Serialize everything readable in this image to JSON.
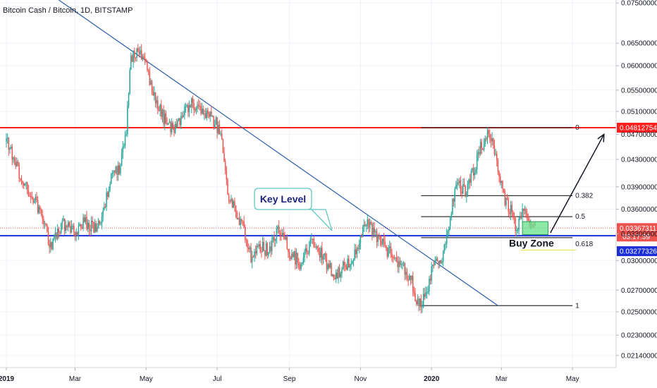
{
  "header": {
    "title": "Bitcoin Cash / Bitcoin, 1D, BITSTAMP"
  },
  "colors": {
    "up": "#26a69a",
    "down": "#ef5350",
    "resistance": "#ff1e1e",
    "support": "#1b2fd8",
    "trendline": "#2a5ea8",
    "fib": "#333333",
    "badge_dark": "#131722",
    "buyzone_fill": "#66e08a",
    "callout_border": "#5fc8c2"
  },
  "chart_data": {
    "type": "candlestick",
    "title": "Bitcoin Cash / Bitcoin, 1D, BITSTAMP",
    "x_range": [
      "2019-01-01",
      "2020-06-05"
    ],
    "y_range": [
      0.0205,
      0.0758
    ],
    "y_scale": "log",
    "xlabels": [
      {
        "date": "2019-01-01",
        "label": "2019"
      },
      {
        "date": "2019-03-01",
        "label": "Mar"
      },
      {
        "date": "2019-05-01",
        "label": "May"
      },
      {
        "date": "2019-07-01",
        "label": "Jul"
      },
      {
        "date": "2019-09-01",
        "label": "Sep"
      },
      {
        "date": "2019-11-01",
        "label": "Nov"
      },
      {
        "date": "2020-01-01",
        "label": "2020"
      },
      {
        "date": "2020-03-01",
        "label": "Mar"
      },
      {
        "date": "2020-05-01",
        "label": "May"
      }
    ],
    "yticks": [
      "0.07500000",
      "0.06500000",
      "0.06000000",
      "0.05500000",
      "0.05100000",
      "0.04700000",
      "0.04300000",
      "0.03900000",
      "0.03600000",
      "0.03300000",
      "0.03000000",
      "0.02700000",
      "0.02500000",
      "0.02300000",
      "0.02140000"
    ],
    "price_path": [
      {
        "date": "2019-01-01",
        "close": 0.0458
      },
      {
        "date": "2019-01-12",
        "close": 0.0408
      },
      {
        "date": "2019-01-22",
        "close": 0.0378
      },
      {
        "date": "2019-02-01",
        "close": 0.0352
      },
      {
        "date": "2019-02-08",
        "close": 0.0316
      },
      {
        "date": "2019-02-18",
        "close": 0.0342
      },
      {
        "date": "2019-02-28",
        "close": 0.0332
      },
      {
        "date": "2019-03-10",
        "close": 0.0345
      },
      {
        "date": "2019-03-18",
        "close": 0.0336
      },
      {
        "date": "2019-03-25",
        "close": 0.0352
      },
      {
        "date": "2019-04-01",
        "close": 0.0401
      },
      {
        "date": "2019-04-08",
        "close": 0.0418
      },
      {
        "date": "2019-04-14",
        "close": 0.0475
      },
      {
        "date": "2019-04-18",
        "close": 0.062
      },
      {
        "date": "2019-04-24",
        "close": 0.0635
      },
      {
        "date": "2019-05-01",
        "close": 0.061
      },
      {
        "date": "2019-05-06",
        "close": 0.055
      },
      {
        "date": "2019-05-14",
        "close": 0.0505
      },
      {
        "date": "2019-05-22",
        "close": 0.0478
      },
      {
        "date": "2019-05-30",
        "close": 0.049
      },
      {
        "date": "2019-06-07",
        "close": 0.0525
      },
      {
        "date": "2019-06-14",
        "close": 0.0515
      },
      {
        "date": "2019-06-22",
        "close": 0.0505
      },
      {
        "date": "2019-06-30",
        "close": 0.0488
      },
      {
        "date": "2019-07-05",
        "close": 0.0455
      },
      {
        "date": "2019-07-10",
        "close": 0.0378
      },
      {
        "date": "2019-07-16",
        "close": 0.036
      },
      {
        "date": "2019-07-22",
        "close": 0.0342
      },
      {
        "date": "2019-07-30",
        "close": 0.0305
      },
      {
        "date": "2019-08-06",
        "close": 0.0318
      },
      {
        "date": "2019-08-14",
        "close": 0.031
      },
      {
        "date": "2019-08-22",
        "close": 0.0338
      },
      {
        "date": "2019-09-01",
        "close": 0.031
      },
      {
        "date": "2019-09-10",
        "close": 0.0298
      },
      {
        "date": "2019-09-20",
        "close": 0.0318
      },
      {
        "date": "2019-10-01",
        "close": 0.0302
      },
      {
        "date": "2019-10-10",
        "close": 0.0283
      },
      {
        "date": "2019-10-20",
        "close": 0.0295
      },
      {
        "date": "2019-10-28",
        "close": 0.0312
      },
      {
        "date": "2019-11-05",
        "close": 0.0345
      },
      {
        "date": "2019-11-12",
        "close": 0.0335
      },
      {
        "date": "2019-11-20",
        "close": 0.0318
      },
      {
        "date": "2019-11-28",
        "close": 0.0305
      },
      {
        "date": "2019-12-06",
        "close": 0.0296
      },
      {
        "date": "2019-12-14",
        "close": 0.0282
      },
      {
        "date": "2019-12-20",
        "close": 0.0258
      },
      {
        "date": "2019-12-26",
        "close": 0.0262
      },
      {
        "date": "2020-01-03",
        "close": 0.0296
      },
      {
        "date": "2020-01-10",
        "close": 0.0305
      },
      {
        "date": "2020-01-16",
        "close": 0.0338
      },
      {
        "date": "2020-01-22",
        "close": 0.0398
      },
      {
        "date": "2020-01-30",
        "close": 0.0385
      },
      {
        "date": "2020-02-06",
        "close": 0.0412
      },
      {
        "date": "2020-02-12",
        "close": 0.0448
      },
      {
        "date": "2020-02-17",
        "close": 0.0468
      },
      {
        "date": "2020-02-21",
        "close": 0.047
      },
      {
        "date": "2020-02-27",
        "close": 0.0418
      },
      {
        "date": "2020-03-04",
        "close": 0.0372
      },
      {
        "date": "2020-03-10",
        "close": 0.0358
      },
      {
        "date": "2020-03-13",
        "close": 0.0332
      },
      {
        "date": "2020-03-17",
        "close": 0.0348
      },
      {
        "date": "2020-03-22",
        "close": 0.036
      },
      {
        "date": "2020-03-26",
        "close": 0.0342
      },
      {
        "date": "2020-03-30",
        "close": 0.0337
      }
    ],
    "horizontal_levels": [
      {
        "name": "resistance",
        "price": 0.04812754,
        "label": "0.04812754"
      },
      {
        "name": "support",
        "price": 0.03277326,
        "label": "0.03277326"
      },
      {
        "name": "last-price",
        "price": 0.03367311,
        "label": "0.03367311"
      }
    ],
    "countdown": "03:17:39",
    "fib_retracement": {
      "start_date": "2019-12-23",
      "end_date": "2020-05-01",
      "high": 0.04812754,
      "low": 0.02555,
      "levels": [
        {
          "ratio": 0,
          "label": "0"
        },
        {
          "ratio": 0.382,
          "label": "0.382"
        },
        {
          "ratio": 0.5,
          "label": "0.5"
        },
        {
          "ratio": 0.618,
          "label": "0.618"
        },
        {
          "ratio": 1,
          "label": "1"
        }
      ]
    },
    "trendline": [
      {
        "date": "2019-02-15",
        "price": 0.0758
      },
      {
        "date": "2020-02-27",
        "price": 0.02555
      }
    ],
    "annotations": {
      "key_level": "Key Level",
      "buy_zone": "Buy Zone"
    },
    "buy_zone_box": {
      "start_date": "2020-03-19",
      "end_date": "2020-04-10",
      "low": 0.0329,
      "high": 0.03445
    },
    "projection_arrow": [
      {
        "date": "2020-04-12",
        "price": 0.0331
      },
      {
        "date": "2020-05-28",
        "price": 0.047
      }
    ]
  }
}
